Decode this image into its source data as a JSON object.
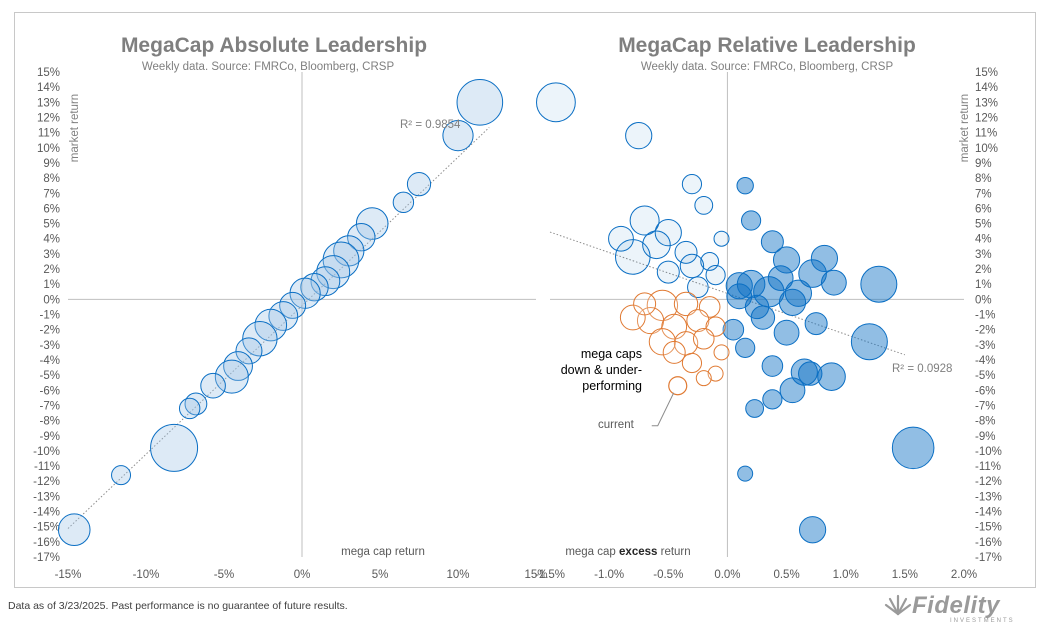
{
  "footnote": "Data as of 3/23/2025. Past performance is no guarantee of future results.",
  "logo": {
    "word": "Fidelity",
    "sub": "INVESTMENTS"
  },
  "colors": {
    "blue": "#0b6fc4",
    "blue_fill": "#9dc3e6",
    "orange": "#e07a33",
    "axis": "#bfbfbf",
    "text": "#7f7f7f"
  },
  "chart_data": [
    {
      "type": "scatter",
      "title": "MegaCap Absolute Leadership",
      "subtitle": "Weekly data.  Source: FMRCo, Bloomberg, CRSP",
      "xlabel": "mega cap return",
      "ylabel": "market return",
      "xlim": [
        -15,
        15
      ],
      "ylim": [
        -17,
        15
      ],
      "x_ticks": [
        "-15%",
        "-10%",
        "-5%",
        "0%",
        "5%",
        "10%",
        "15%"
      ],
      "y_ticks": [
        "15%",
        "14%",
        "13%",
        "12%",
        "11%",
        "10%",
        "9%",
        "8%",
        "7%",
        "6%",
        "5%",
        "4%",
        "3%",
        "2%",
        "1%",
        "0%",
        "-1%",
        "-2%",
        "-3%",
        "-4%",
        "-5%",
        "-6%",
        "-7%",
        "-8%",
        "-9%",
        "-10%",
        "-11%",
        "-12%",
        "-13%",
        "-14%",
        "-15%",
        "-16%",
        "-17%"
      ],
      "annotation": "R² = 0.9854",
      "trendline": {
        "slope": 0.9,
        "intercept": 0.0
      },
      "points": [
        {
          "x": 11.4,
          "y": 13.0,
          "s": 2.4
        },
        {
          "x": 10.0,
          "y": 10.8,
          "s": 1.3
        },
        {
          "x": 7.5,
          "y": 7.6,
          "s": 0.8
        },
        {
          "x": 6.5,
          "y": 6.4,
          "s": 0.6
        },
        {
          "x": 4.5,
          "y": 5.0,
          "s": 1.4
        },
        {
          "x": 3.8,
          "y": 4.1,
          "s": 1.1
        },
        {
          "x": 3.0,
          "y": 3.2,
          "s": 1.3
        },
        {
          "x": 2.5,
          "y": 2.6,
          "s": 1.7
        },
        {
          "x": 2.0,
          "y": 1.8,
          "s": 1.5
        },
        {
          "x": 1.5,
          "y": 1.2,
          "s": 1.2
        },
        {
          "x": 0.8,
          "y": 0.8,
          "s": 1.1
        },
        {
          "x": 0.2,
          "y": 0.4,
          "s": 1.3
        },
        {
          "x": -0.6,
          "y": -0.4,
          "s": 1.0
        },
        {
          "x": -1.2,
          "y": -1.1,
          "s": 1.2
        },
        {
          "x": -2.0,
          "y": -1.7,
          "s": 1.4
        },
        {
          "x": -2.7,
          "y": -2.6,
          "s": 1.6
        },
        {
          "x": -3.4,
          "y": -3.4,
          "s": 1.0
        },
        {
          "x": -4.1,
          "y": -4.4,
          "s": 1.2
        },
        {
          "x": -4.5,
          "y": -5.1,
          "s": 1.5
        },
        {
          "x": -5.7,
          "y": -5.7,
          "s": 0.9
        },
        {
          "x": -6.8,
          "y": -6.9,
          "s": 0.7
        },
        {
          "x": -7.2,
          "y": -7.2,
          "s": 0.6
        },
        {
          "x": -8.2,
          "y": -9.8,
          "s": 2.5
        },
        {
          "x": -11.6,
          "y": -11.6,
          "s": 0.5
        },
        {
          "x": -14.6,
          "y": -15.2,
          "s": 1.4
        }
      ]
    },
    {
      "type": "scatter",
      "title": "MegaCap Relative Leadership",
      "subtitle": "Weekly data.  Source: FMRCo, Bloomberg, CRSP",
      "xlabel": "mega cap excess return",
      "ylabel": "market return",
      "xlim": [
        -1.5,
        2.0
      ],
      "ylim": [
        -17,
        15
      ],
      "x_ticks": [
        "-1.5%",
        "-1.0%",
        "-0.5%",
        "0.0%",
        "0.5%",
        "1.0%",
        "1.5%",
        "2.0%"
      ],
      "y_ticks": [
        "15%",
        "14%",
        "13%",
        "12%",
        "11%",
        "10%",
        "9%",
        "8%",
        "7%",
        "6%",
        "5%",
        "4%",
        "3%",
        "2%",
        "1%",
        "0%",
        "-1%",
        "-2%",
        "-3%",
        "-4%",
        "-5%",
        "-6%",
        "-7%",
        "-8%",
        "-9%",
        "-10%",
        "-11%",
        "-12%",
        "-13%",
        "-14%",
        "-15%",
        "-16%",
        "-17%"
      ],
      "annotation": "R² = 0.0928",
      "callout": "mega caps down & under-performing",
      "current_label": "current",
      "trendline": {
        "slope": -2.4,
        "intercept": 0.3
      },
      "current_point": {
        "x": -0.42,
        "y": -5.7
      },
      "points": [
        {
          "x": -1.45,
          "y": 13.0,
          "s": 2.2
        },
        {
          "x": -0.75,
          "y": 10.8,
          "s": 1.3
        },
        {
          "x": -0.3,
          "y": 7.6,
          "s": 0.8
        },
        {
          "x": -0.2,
          "y": 6.2,
          "s": 0.7
        },
        {
          "x": -0.7,
          "y": 5.2,
          "s": 1.5
        },
        {
          "x": -0.5,
          "y": 4.4,
          "s": 1.3
        },
        {
          "x": -0.9,
          "y": 4.0,
          "s": 1.2
        },
        {
          "x": -0.6,
          "y": 3.6,
          "s": 1.4
        },
        {
          "x": -0.8,
          "y": 2.8,
          "s": 1.9
        },
        {
          "x": -0.35,
          "y": 3.1,
          "s": 1.0
        },
        {
          "x": -0.3,
          "y": 2.2,
          "s": 1.1
        },
        {
          "x": -0.15,
          "y": 2.5,
          "s": 0.7
        },
        {
          "x": -0.1,
          "y": 1.6,
          "s": 0.8
        },
        {
          "x": -0.5,
          "y": 1.8,
          "s": 1.0
        },
        {
          "x": -0.25,
          "y": 0.8,
          "s": 0.9
        },
        {
          "x": -0.05,
          "y": 4.0,
          "s": 0.5
        },
        {
          "x": 0.15,
          "y": 7.5,
          "s": 0.6
        },
        {
          "x": 0.2,
          "y": 5.2,
          "s": 0.8
        },
        {
          "x": 0.38,
          "y": 3.8,
          "s": 1.0
        },
        {
          "x": 0.5,
          "y": 2.6,
          "s": 1.3
        },
        {
          "x": 0.72,
          "y": 1.7,
          "s": 1.4
        },
        {
          "x": 0.82,
          "y": 2.7,
          "s": 1.3
        },
        {
          "x": 0.9,
          "y": 1.1,
          "s": 1.2
        },
        {
          "x": 1.28,
          "y": 1.0,
          "s": 2.0
        },
        {
          "x": 0.2,
          "y": 1.0,
          "s": 1.4
        },
        {
          "x": 0.35,
          "y": 0.5,
          "s": 1.6
        },
        {
          "x": 0.1,
          "y": 0.2,
          "s": 1.2
        },
        {
          "x": 0.55,
          "y": -0.2,
          "s": 1.3
        },
        {
          "x": 0.3,
          "y": -1.2,
          "s": 1.1
        },
        {
          "x": 0.5,
          "y": -2.2,
          "s": 1.2
        },
        {
          "x": 0.75,
          "y": -1.6,
          "s": 1.0
        },
        {
          "x": 1.2,
          "y": -2.8,
          "s": 2.0
        },
        {
          "x": 0.65,
          "y": -4.8,
          "s": 1.3
        },
        {
          "x": 0.88,
          "y": -5.1,
          "s": 1.4
        },
        {
          "x": 0.55,
          "y": -6.0,
          "s": 1.2
        },
        {
          "x": 0.38,
          "y": -6.6,
          "s": 0.8
        },
        {
          "x": 0.23,
          "y": -7.2,
          "s": 0.7
        },
        {
          "x": 0.38,
          "y": -4.4,
          "s": 0.9
        },
        {
          "x": 0.15,
          "y": -3.2,
          "s": 0.8
        },
        {
          "x": 0.05,
          "y": -2.0,
          "s": 0.9
        },
        {
          "x": 0.15,
          "y": -11.5,
          "s": 0.5
        },
        {
          "x": 0.72,
          "y": -15.2,
          "s": 1.3
        },
        {
          "x": 1.57,
          "y": -9.8,
          "s": 2.4
        },
        {
          "x": 0.7,
          "y": -4.9,
          "s": 1.1
        },
        {
          "x": 0.1,
          "y": 0.9,
          "s": 1.3
        },
        {
          "x": 0.45,
          "y": 1.4,
          "s": 1.2
        },
        {
          "x": 0.6,
          "y": 0.4,
          "s": 1.3
        },
        {
          "x": 0.25,
          "y": -0.5,
          "s": 1.1
        }
      ],
      "orange_points": [
        {
          "x": -0.55,
          "y": -0.4,
          "s": 1.6
        },
        {
          "x": -0.35,
          "y": -0.3,
          "s": 1.1
        },
        {
          "x": -0.15,
          "y": -0.5,
          "s": 0.9
        },
        {
          "x": -0.65,
          "y": -1.4,
          "s": 1.3
        },
        {
          "x": -0.45,
          "y": -1.8,
          "s": 1.2
        },
        {
          "x": -0.25,
          "y": -1.4,
          "s": 1.0
        },
        {
          "x": -0.1,
          "y": -1.8,
          "s": 0.8
        },
        {
          "x": -0.55,
          "y": -2.8,
          "s": 1.3
        },
        {
          "x": -0.35,
          "y": -2.9,
          "s": 1.1
        },
        {
          "x": -0.2,
          "y": -2.6,
          "s": 0.9
        },
        {
          "x": -0.45,
          "y": -3.5,
          "s": 1.0
        },
        {
          "x": -0.3,
          "y": -4.2,
          "s": 0.8
        },
        {
          "x": -0.1,
          "y": -4.9,
          "s": 0.5
        },
        {
          "x": -0.2,
          "y": -5.2,
          "s": 0.5
        },
        {
          "x": -0.05,
          "y": -3.5,
          "s": 0.5
        },
        {
          "x": -0.8,
          "y": -1.2,
          "s": 1.2
        },
        {
          "x": -0.7,
          "y": -0.3,
          "s": 1.0
        }
      ]
    }
  ]
}
